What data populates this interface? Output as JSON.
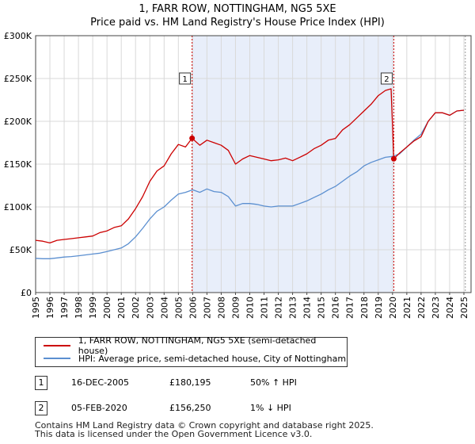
{
  "chart_data": {
    "type": "line",
    "title": "1, FARR ROW, NOTTINGHAM, NG5 5XE",
    "subtitle": "Price paid vs. HM Land Registry's House Price Index (HPI)",
    "xlabel": "",
    "ylabel": "",
    "xlim": [
      1995,
      2025.5
    ],
    "ylim": [
      0,
      300000
    ],
    "ytick_labels": [
      "£0",
      "£50K",
      "£100K",
      "£150K",
      "£200K",
      "£250K",
      "£300K"
    ],
    "ytick_values": [
      0,
      50000,
      100000,
      150000,
      200000,
      250000,
      300000
    ],
    "xtick_labels": [
      "1995",
      "1996",
      "1997",
      "1998",
      "1999",
      "2000",
      "2001",
      "2002",
      "2003",
      "2004",
      "2005",
      "2006",
      "2007",
      "2008",
      "2009",
      "2010",
      "2011",
      "2012",
      "2013",
      "2014",
      "2015",
      "2016",
      "2017",
      "2018",
      "2019",
      "2020",
      "2021",
      "2022",
      "2023",
      "2024",
      "2025"
    ],
    "grid": true,
    "shaded_region": [
      2005.96,
      2020.09
    ],
    "series": [
      {
        "name": "1, FARR ROW, NOTTINGHAM, NG5 5XE (semi-detached house)",
        "color": "#cc0000",
        "x": [
          1995.0,
          1995.5,
          1996.0,
          1996.5,
          1997.0,
          1997.5,
          1998.0,
          1998.5,
          1999.0,
          1999.5,
          2000.0,
          2000.5,
          2001.0,
          2001.5,
          2002.0,
          2002.5,
          2003.0,
          2003.5,
          2004.0,
          2004.5,
          2005.0,
          2005.5,
          2005.96,
          2006.5,
          2007.0,
          2007.5,
          2008.0,
          2008.5,
          2009.0,
          2009.5,
          2010.0,
          2010.5,
          2011.0,
          2011.5,
          2012.0,
          2012.5,
          2013.0,
          2013.5,
          2014.0,
          2014.5,
          2015.0,
          2015.5,
          2016.0,
          2016.5,
          2017.0,
          2017.5,
          2018.0,
          2018.5,
          2019.0,
          2019.5,
          2019.9,
          2020.09,
          2020.5,
          2021.0,
          2021.5,
          2022.0,
          2022.5,
          2023.0,
          2023.5,
          2024.0,
          2024.5,
          2025.0
        ],
        "y": [
          61000,
          60000,
          58000,
          61000,
          62000,
          63000,
          64000,
          65000,
          66000,
          70000,
          72000,
          76000,
          78000,
          86000,
          98000,
          112000,
          130000,
          142000,
          148000,
          162000,
          173000,
          170000,
          180195,
          172000,
          178000,
          175000,
          172000,
          166000,
          150000,
          156000,
          160000,
          158000,
          156000,
          154000,
          155000,
          157000,
          154000,
          158000,
          162000,
          168000,
          172000,
          178000,
          180000,
          190000,
          196000,
          204000,
          212000,
          220000,
          230000,
          236000,
          238000,
          156250,
          163000,
          170000,
          177000,
          182000,
          200000,
          210000,
          210000,
          207000,
          212000,
          213000
        ]
      },
      {
        "name": "HPI: Average price, semi-detached house, City of Nottingham",
        "color": "#5b8fd0",
        "x": [
          1995.0,
          1995.5,
          1996.0,
          1996.5,
          1997.0,
          1997.5,
          1998.0,
          1998.5,
          1999.0,
          1999.5,
          2000.0,
          2000.5,
          2001.0,
          2001.5,
          2002.0,
          2002.5,
          2003.0,
          2003.5,
          2004.0,
          2004.5,
          2005.0,
          2005.5,
          2006.0,
          2006.5,
          2007.0,
          2007.5,
          2008.0,
          2008.5,
          2009.0,
          2009.5,
          2010.0,
          2010.5,
          2011.0,
          2011.5,
          2012.0,
          2012.5,
          2013.0,
          2013.5,
          2014.0,
          2014.5,
          2015.0,
          2015.5,
          2016.0,
          2016.5,
          2017.0,
          2017.5,
          2018.0,
          2018.5,
          2019.0,
          2019.5,
          2020.0,
          2020.5,
          2021.0,
          2021.5,
          2022.0,
          2022.5,
          2023.0,
          2023.5,
          2024.0,
          2024.5,
          2025.0
        ],
        "y": [
          40000,
          39500,
          39500,
          40500,
          41500,
          42000,
          43000,
          44000,
          45000,
          46000,
          48000,
          50000,
          52000,
          57000,
          65000,
          75000,
          86000,
          95000,
          100000,
          108000,
          115000,
          117000,
          120000,
          117000,
          121000,
          118000,
          117000,
          112000,
          101000,
          104000,
          104000,
          103000,
          101000,
          100000,
          101000,
          101000,
          101000,
          104000,
          107000,
          111000,
          115000,
          120000,
          124000,
          130000,
          136000,
          141000,
          148000,
          152000,
          155000,
          158000,
          159000,
          162000,
          170000,
          178000,
          185000,
          200000,
          210000,
          210000,
          207000,
          212000,
          213000
        ]
      }
    ],
    "markers": [
      {
        "label": "1",
        "x": 2005.96,
        "y": 180195
      },
      {
        "label": "2",
        "x": 2020.09,
        "y": 156250
      }
    ]
  },
  "legend": {
    "property_label": "1, FARR ROW, NOTTINGHAM, NG5 5XE (semi-detached house)",
    "hpi_label": "HPI: Average price, semi-detached house, City of Nottingham"
  },
  "sales": [
    {
      "num": "1",
      "date": "16-DEC-2005",
      "price": "£180,195",
      "hpi": "50% ↑ HPI"
    },
    {
      "num": "2",
      "date": "05-FEB-2020",
      "price": "£156,250",
      "hpi": "1% ↓ HPI"
    }
  ],
  "footer": {
    "line1": "Contains HM Land Registry data © Crown copyright and database right 2025.",
    "line2": "This data is licensed under the Open Government Licence v3.0."
  },
  "colors": {
    "property": "#cc0000",
    "hpi": "#5b8fd0",
    "shade": "#e8eefa",
    "grid": "#d9d9d9"
  }
}
